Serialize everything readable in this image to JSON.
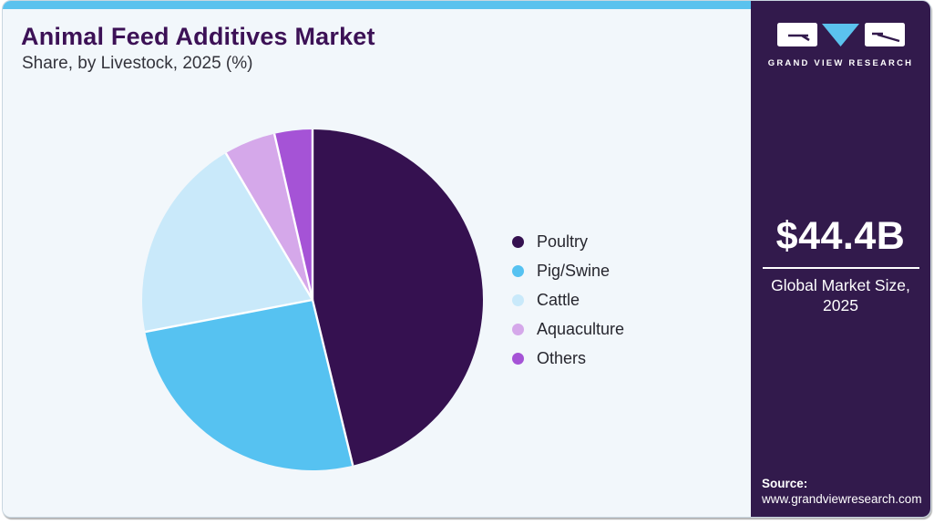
{
  "header": {
    "title": "Animal Feed Additives Market",
    "subtitle": "Share, by Livestock, 2025 (%)"
  },
  "chart_data": {
    "type": "pie",
    "title": "Animal Feed Additives Market Share, by Livestock, 2025 (%)",
    "unit": "%",
    "categories": [
      "Poultry",
      "Pig/Swine",
      "Cattle",
      "Aquaculture",
      "Others"
    ],
    "values": [
      46.2,
      25.8,
      19.5,
      4.9,
      3.6
    ],
    "colors": [
      "#351150",
      "#56c2f1",
      "#c9e9fa",
      "#d5a8ea",
      "#a553d6"
    ],
    "start_angle": "top",
    "direction": "clockwise",
    "legend_position": "right",
    "data_labels": false
  },
  "sidebar": {
    "logo_text": "GRAND VIEW RESEARCH",
    "market_size_value": "$44.4B",
    "market_size_label": "Global Market Size, 2025",
    "source_label": "Source:",
    "source_url": "www.grandviewresearch.com"
  },
  "theme": {
    "topbar_blue": "#5bc2ee",
    "sidebar_purple": "#321a4c",
    "main_bg": "#f2f7fb",
    "title_purple": "#3c1156",
    "separator_white": "#ffffff"
  }
}
